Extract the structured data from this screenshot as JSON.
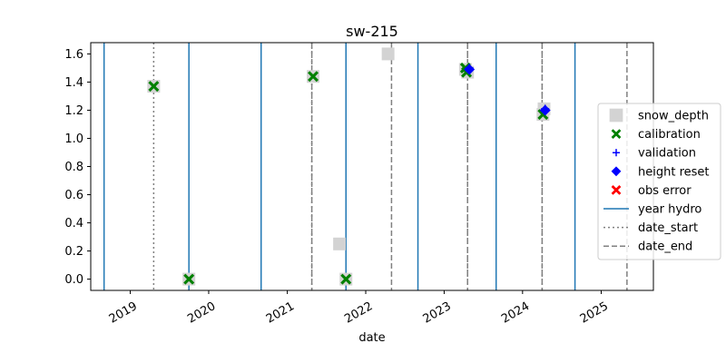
{
  "chart_data": {
    "type": "scatter",
    "title": "sw-215",
    "xlabel": "date",
    "ylabel": "",
    "xlim": [
      "2018-07-01",
      "2025-09-01"
    ],
    "ylim": [
      -0.08,
      1.68
    ],
    "x_ticks": [
      {
        "date": "2019-01-01",
        "label": "2019"
      },
      {
        "date": "2020-01-01",
        "label": "2020"
      },
      {
        "date": "2021-01-01",
        "label": "2021"
      },
      {
        "date": "2022-01-01",
        "label": "2022"
      },
      {
        "date": "2023-01-01",
        "label": "2023"
      },
      {
        "date": "2024-01-01",
        "label": "2024"
      },
      {
        "date": "2025-01-01",
        "label": "2025"
      }
    ],
    "y_ticks": [
      {
        "value": 0.0,
        "label": "0.0"
      },
      {
        "value": 0.2,
        "label": "0.2"
      },
      {
        "value": 0.4,
        "label": "0.4"
      },
      {
        "value": 0.6,
        "label": "0.6"
      },
      {
        "value": 0.8,
        "label": "0.8"
      },
      {
        "value": 1.0,
        "label": "1.0"
      },
      {
        "value": 1.2,
        "label": "1.2"
      },
      {
        "value": 1.4,
        "label": "1.4"
      },
      {
        "value": 1.6,
        "label": "1.6"
      }
    ],
    "legend_position": "right",
    "legend": [
      {
        "label": "snow_depth",
        "marker": "square",
        "color": "#d3d3d3"
      },
      {
        "label": "calibration",
        "marker": "x-filled",
        "color": "#008000"
      },
      {
        "label": "validation",
        "marker": "plus",
        "color": "#0000ff"
      },
      {
        "label": "height reset",
        "marker": "diamond",
        "color": "#0000ff"
      },
      {
        "label": "obs error",
        "marker": "x-filled",
        "color": "#ff0000"
      },
      {
        "label": "year hydro",
        "marker": "line-solid",
        "color": "#1f77b4"
      },
      {
        "label": "date_start",
        "marker": "line-dotted",
        "color": "#808080"
      },
      {
        "label": "date_end",
        "marker": "line-dashed",
        "color": "#808080"
      }
    ],
    "series": [
      {
        "name": "snow_depth",
        "marker": "square",
        "color": "#d3d3d3",
        "points": [
          {
            "x": "2019-04-20",
            "y": 1.37
          },
          {
            "x": "2019-10-01",
            "y": 0.0
          },
          {
            "x": "2021-05-01",
            "y": 1.44
          },
          {
            "x": "2021-09-01",
            "y": 0.25
          },
          {
            "x": "2021-10-01",
            "y": 0.0
          },
          {
            "x": "2022-04-15",
            "y": 1.6
          },
          {
            "x": "2023-04-10",
            "y": 1.49
          },
          {
            "x": "2023-04-20",
            "y": 1.47
          },
          {
            "x": "2024-04-05",
            "y": 1.17
          },
          {
            "x": "2024-04-10",
            "y": 1.21
          }
        ]
      },
      {
        "name": "calibration",
        "marker": "x-filled",
        "color": "#008000",
        "points": [
          {
            "x": "2019-04-20",
            "y": 1.37
          },
          {
            "x": "2019-10-01",
            "y": 0.0
          },
          {
            "x": "2021-05-01",
            "y": 1.44
          },
          {
            "x": "2021-10-01",
            "y": 0.0
          },
          {
            "x": "2023-04-10",
            "y": 1.5
          },
          {
            "x": "2023-04-15",
            "y": 1.47
          },
          {
            "x": "2024-04-05",
            "y": 1.17
          }
        ]
      },
      {
        "name": "validation",
        "marker": "plus",
        "color": "#0000ff",
        "points": [
          {
            "x": "2023-04-28",
            "y": 1.5
          },
          {
            "x": "2024-04-15",
            "y": 1.21
          }
        ]
      },
      {
        "name": "height reset",
        "marker": "diamond",
        "color": "#0000ff",
        "points": [
          {
            "x": "2023-04-28",
            "y": 1.49
          },
          {
            "x": "2024-04-15",
            "y": 1.2
          }
        ]
      },
      {
        "name": "obs error",
        "marker": "x-filled",
        "color": "#ff0000",
        "points": []
      }
    ],
    "vlines": {
      "year_hydro": {
        "color": "#1f77b4",
        "style": "solid",
        "dates": [
          "2018-09-01",
          "2019-10-01",
          "2020-09-01",
          "2021-10-01",
          "2022-09-01",
          "2023-08-31",
          "2024-09-01"
        ]
      },
      "date_start": {
        "color": "#808080",
        "style": "dotted",
        "dates": [
          "2019-04-20",
          "2021-04-25",
          "2023-04-20",
          "2024-04-01"
        ]
      },
      "date_end": {
        "color": "#808080",
        "style": "dashed",
        "dates": [
          "2021-04-25",
          "2022-05-01",
          "2023-04-20",
          "2024-04-01",
          "2025-05-01"
        ]
      }
    }
  }
}
